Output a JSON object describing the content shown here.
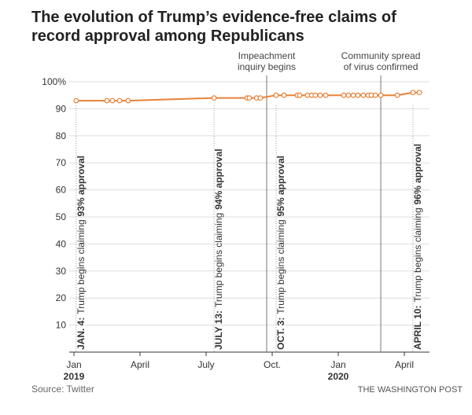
{
  "chart_data": {
    "type": "line",
    "title": [
      "The evolution of Trump’s evidence-free claims of",
      "record approval among Republicans"
    ],
    "x": [
      0.1,
      1.5,
      1.75,
      2.07,
      2.46,
      6.36,
      7.86,
      7.96,
      8.29,
      8.46,
      9.18,
      9.54,
      10.14,
      10.25,
      10.6,
      10.79,
      10.96,
      11.18,
      11.43,
      12.25,
      12.46,
      12.68,
      12.89,
      13.14,
      13.36,
      13.5,
      13.68,
      13.93,
      14.68,
      15.39,
      15.68
    ],
    "values": [
      93,
      93,
      93,
      93,
      93,
      94,
      94,
      94,
      94,
      94,
      95,
      95,
      95,
      95,
      95,
      95,
      95,
      95,
      95,
      95,
      95,
      95,
      95,
      95,
      95,
      95,
      95,
      95,
      95,
      96,
      96
    ],
    "color": "#e8823a",
    "xlim": [
      0,
      16
    ],
    "ylim": [
      0,
      100
    ],
    "xticks": [
      {
        "value": 0,
        "label": "Jan"
      },
      {
        "value": 3,
        "label": "April"
      },
      {
        "value": 6,
        "label": "July"
      },
      {
        "value": 9,
        "label": "Oct."
      },
      {
        "value": 12,
        "label": "Jan"
      },
      {
        "value": 15,
        "label": "April"
      }
    ],
    "year_labels": [
      {
        "value": 0,
        "label": "2019"
      },
      {
        "value": 12,
        "label": "2020"
      }
    ],
    "yticks": [
      10,
      20,
      30,
      40,
      50,
      60,
      70,
      80,
      90,
      {
        "value": 100,
        "label": "100%"
      }
    ],
    "grid": true,
    "events": [
      {
        "x": 8.75,
        "label": [
          "Impeachment",
          "inquiry begins"
        ]
      },
      {
        "x": 13.93,
        "label": [
          "Community spread",
          "of virus confirmed"
        ]
      }
    ],
    "annotations": [
      {
        "x": 0.1,
        "label": "JAN. 4:",
        "text": "Trump begins claiming",
        "emphasis": "93% approval"
      },
      {
        "x": 6.36,
        "label": "JULY 13:",
        "text": "Trump begins claiming",
        "emphasis": "94% approval"
      },
      {
        "x": 9.18,
        "label": "OCT. 3:",
        "text": "Trump begins claiming",
        "emphasis": "95% approval"
      },
      {
        "x": 15.39,
        "label": "APRIL 10:",
        "text": "Trump begins claiming",
        "emphasis": "96% approval"
      }
    ],
    "source": "Source: Twitter",
    "credit": "THE WASHINGTON POST"
  }
}
